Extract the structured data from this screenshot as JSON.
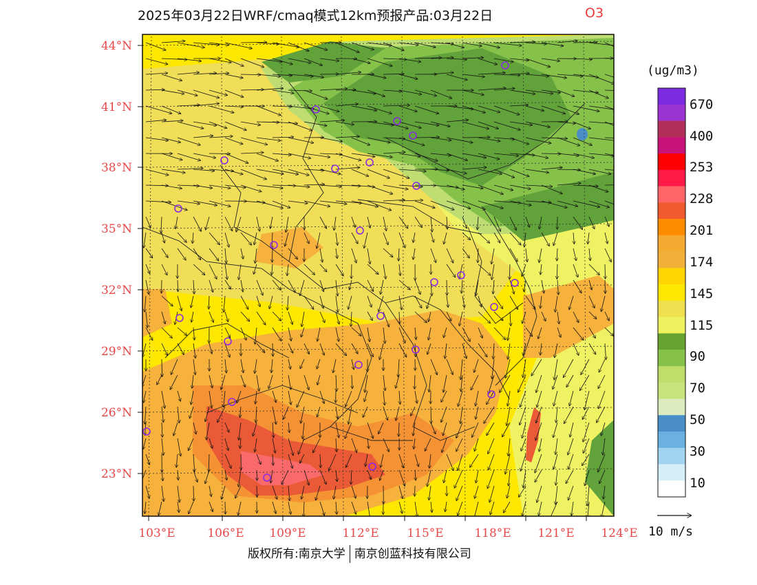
{
  "header": {
    "title": "2025年03月22日WRF/cmaq模式12km预报产品:03月22日",
    "species": "O3"
  },
  "map": {
    "lat_ticks": [
      "44°N",
      "41°N",
      "38°N",
      "35°N",
      "32°N",
      "29°N",
      "26°N",
      "23°N"
    ],
    "lon_ticks": [
      "103°E",
      "106°E",
      "109°E",
      "112°E",
      "115°E",
      "118°E",
      "121°E",
      "124°E"
    ],
    "colors": {
      "deep_green": "#62a23a",
      "mid_green": "#86c14a",
      "light_green": "#bedd72",
      "pale_yellow": "#eef263",
      "khaki": "#f0dd58",
      "yellow": "#ffe800",
      "light_orange": "#f6b23c",
      "orange": "#f49234",
      "red_orange": "#ea5a36",
      "salmon": "#fb6a6a",
      "station": "#8a2be2"
    }
  },
  "colorbar": {
    "unit": "(ug/m3)",
    "levels": [
      "670",
      "400",
      "253",
      "228",
      "201",
      "174",
      "145",
      "115",
      "90",
      "70",
      "50",
      "30",
      "10"
    ],
    "colors": [
      "#7b2be0",
      "#9b34d0",
      "#b0305a",
      "#c8147a",
      "#ff0000",
      "#ff1a48",
      "#ff6666",
      "#f05a2e",
      "#ff8c00",
      "#f4aa30",
      "#f0b03a",
      "#ffd400",
      "#ffe800",
      "#f0e050",
      "#eef260",
      "#66a432",
      "#86c24a",
      "#bede6a",
      "#c6e47c",
      "#dcecc0",
      "#4a8ec8",
      "#6ab0e0",
      "#a0d4f0",
      "#d6eef8",
      "#ffffff"
    ]
  },
  "reference_vector": {
    "label": "10 m/s"
  },
  "footer": {
    "left": "版权所有:南京大学",
    "right": "南京创蓝科技有限公司"
  }
}
